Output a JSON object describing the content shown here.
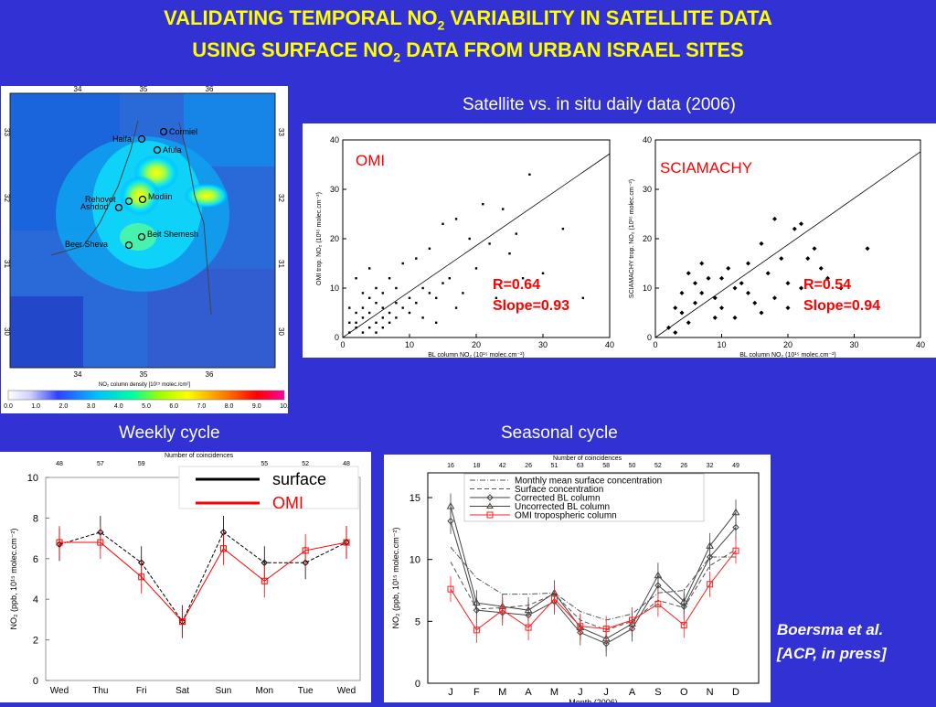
{
  "slide": {
    "title_line1_a": "VALIDATING TEMPORAL NO",
    "title_line1_sub": "2",
    "title_line1_b": " VARIABILITY IN SATELLITE DATA",
    "title_line2_a": "USING SURFACE NO",
    "title_line2_sub": "2",
    "title_line2_b": " DATA FROM URBAN ISRAEL SITES",
    "scatter_heading": "Satellite vs. in situ daily data (2006)",
    "weekly_heading": "Weekly cycle",
    "seasonal_heading": "Seasonal cycle",
    "credit_line1": "Boersma et al.",
    "credit_line2": "[ACP, in press]"
  },
  "map": {
    "top_ticks": [
      "34",
      "35",
      "36"
    ],
    "bottom_ticks": [
      "34",
      "35",
      "36"
    ],
    "left_ticks": [
      "33",
      "32",
      "31",
      "30"
    ],
    "right_ticks": [
      "33",
      "32",
      "31",
      "30"
    ],
    "cities": [
      "Cormiel",
      "Haifa",
      "Afula",
      "Rehovot",
      "Modiin",
      "Ashdod",
      "Beit Shemesh",
      "Beer Sheva"
    ],
    "colorbar_label": "NO₂ column density [10¹⁵ molec./cm²]",
    "colorbar_ticks": [
      "0.0",
      "1.0",
      "2.0",
      "3.0",
      "4.0",
      "5.0",
      "6.0",
      "7.0",
      "8.0",
      "9.0",
      "10."
    ]
  },
  "chart_data": [
    {
      "type": "scatter",
      "label": "OMI",
      "xlabel": "BL column NO₂ (10¹⁵ molec.cm⁻²)",
      "ylabel": "OMI trop. NO₂ (10¹⁵ molec.cm⁻²)",
      "xlim": [
        0,
        40
      ],
      "ylim": [
        0,
        40
      ],
      "ticks": [
        "0",
        "10",
        "20",
        "30",
        "40"
      ],
      "fit_slope": 0.93,
      "stats_r": "R=0.64",
      "stats_slope": "Slope=0.93",
      "points": [
        [
          1,
          1
        ],
        [
          2,
          3
        ],
        [
          2,
          2
        ],
        [
          3,
          1
        ],
        [
          3,
          4
        ],
        [
          4,
          2
        ],
        [
          4,
          5
        ],
        [
          5,
          3
        ],
        [
          5,
          1
        ],
        [
          6,
          2
        ],
        [
          6,
          4
        ],
        [
          7,
          3
        ],
        [
          1,
          3
        ],
        [
          2,
          5
        ],
        [
          3,
          6
        ],
        [
          4,
          8
        ],
        [
          5,
          7
        ],
        [
          6,
          6
        ],
        [
          7,
          5
        ],
        [
          8,
          4
        ],
        [
          8,
          7
        ],
        [
          9,
          6
        ],
        [
          10,
          5
        ],
        [
          10,
          8
        ],
        [
          11,
          7
        ],
        [
          12,
          10
        ],
        [
          13,
          9
        ],
        [
          14,
          8
        ],
        [
          15,
          11
        ],
        [
          16,
          12
        ],
        [
          18,
          9
        ],
        [
          20,
          14
        ],
        [
          3,
          9
        ],
        [
          5,
          10
        ],
        [
          7,
          12
        ],
        [
          9,
          15
        ],
        [
          11,
          16
        ],
        [
          13,
          18
        ],
        [
          15,
          23
        ],
        [
          17,
          24
        ],
        [
          19,
          20
        ],
        [
          22,
          19
        ],
        [
          24,
          26
        ],
        [
          26,
          21
        ],
        [
          28,
          33
        ],
        [
          30,
          13
        ],
        [
          25,
          17
        ],
        [
          21,
          27
        ],
        [
          2,
          12
        ],
        [
          4,
          14
        ],
        [
          1,
          6
        ],
        [
          6,
          9
        ],
        [
          8,
          10
        ],
        [
          12,
          4
        ],
        [
          14,
          3
        ],
        [
          17,
          6
        ],
        [
          23,
          8
        ],
        [
          27,
          12
        ],
        [
          33,
          22
        ],
        [
          36,
          8
        ]
      ]
    },
    {
      "type": "scatter",
      "label": "SCIAMACHY",
      "xlabel": "BL column NO₂ (10¹⁵ molec.cm⁻²)",
      "ylabel": "SCIAMACHY trop. NO₂ (10¹⁵ molec.cm⁻²)",
      "xlim": [
        0,
        40
      ],
      "ylim": [
        0,
        40
      ],
      "ticks": [
        "0",
        "10",
        "20",
        "30",
        "40"
      ],
      "fit_slope": 0.94,
      "stats_r": "R=0.54",
      "stats_slope": "Slope=0.94",
      "points": [
        [
          2,
          2
        ],
        [
          3,
          1
        ],
        [
          4,
          5
        ],
        [
          5,
          3
        ],
        [
          6,
          7
        ],
        [
          7,
          9
        ],
        [
          8,
          12
        ],
        [
          9,
          8
        ],
        [
          10,
          6
        ],
        [
          11,
          14
        ],
        [
          12,
          10
        ],
        [
          13,
          11
        ],
        [
          14,
          9
        ],
        [
          15,
          7
        ],
        [
          16,
          5
        ],
        [
          17,
          13
        ],
        [
          18,
          8
        ],
        [
          19,
          16
        ],
        [
          20,
          11
        ],
        [
          21,
          22
        ],
        [
          22,
          23
        ],
        [
          23,
          16
        ],
        [
          24,
          18
        ],
        [
          25,
          14
        ],
        [
          5,
          13
        ],
        [
          7,
          15
        ],
        [
          9,
          4
        ],
        [
          12,
          4
        ],
        [
          3,
          6
        ],
        [
          4,
          9
        ],
        [
          6,
          11
        ],
        [
          10,
          12
        ],
        [
          14,
          15
        ],
        [
          20,
          6
        ],
        [
          26,
          12
        ],
        [
          28,
          10
        ],
        [
          32,
          18
        ],
        [
          18,
          24
        ],
        [
          16,
          19
        ],
        [
          22,
          10
        ]
      ]
    },
    {
      "type": "line",
      "title": "Number of coincidences",
      "categories": [
        "Wed",
        "Thu",
        "Fri",
        "Sat",
        "Sun",
        "Mon",
        "Tue",
        "Wed"
      ],
      "top_counts": [
        "48",
        "57",
        "59",
        "",
        "",
        "55",
        "52",
        "48"
      ],
      "ylabel": "NO₂ (ppb, 10¹⁵ molec.cm⁻²)",
      "ylim": [
        0,
        10
      ],
      "yticks": [
        "0",
        "2",
        "4",
        "6",
        "8",
        "10"
      ],
      "series": [
        {
          "name": "surface",
          "color": "#000000",
          "values": [
            6.7,
            7.3,
            5.8,
            2.9,
            7.3,
            5.8,
            5.8,
            6.8
          ]
        },
        {
          "name": "OMI",
          "color": "#ff0000",
          "values": [
            6.8,
            6.8,
            5.1,
            2.9,
            6.5,
            4.9,
            6.4,
            6.8
          ]
        }
      ]
    },
    {
      "type": "line",
      "title": "Number of coincidences",
      "categories": [
        "J",
        "F",
        "M",
        "A",
        "M",
        "J",
        "J",
        "A",
        "S",
        "O",
        "N",
        "D"
      ],
      "top_counts": [
        "16",
        "18",
        "42",
        "26",
        "51",
        "63",
        "58",
        "50",
        "52",
        "26",
        "32",
        "49"
      ],
      "xlabel": "Month (2006)",
      "ylabel": "NO₂ (ppb, 10¹⁵ molec.cm⁻²)",
      "ylim": [
        0,
        17
      ],
      "yticks": [
        "0",
        "5",
        "10",
        "15"
      ],
      "series": [
        {
          "name": "Monthly mean surface concentration",
          "color": "#555555",
          "dash": "6,2,1,2",
          "values": [
            11.0,
            8.5,
            7.2,
            7.2,
            7.3,
            5.8,
            5.1,
            5.6,
            7.3,
            7.5,
            10.2,
            10.2
          ]
        },
        {
          "name": "Surface concentration",
          "color": "#555555",
          "dash": "5,3",
          "values": [
            9.8,
            6.0,
            6.1,
            6.3,
            7.2,
            5.1,
            4.3,
            5.0,
            6.7,
            6.1,
            9.5,
            10.8
          ]
        },
        {
          "name": "Corrected BL column",
          "color": "#444444",
          "marker": "diamond",
          "values": [
            13.1,
            5.9,
            5.7,
            5.5,
            6.6,
            4.1,
            3.2,
            4.4,
            7.9,
            6.2,
            10.2,
            12.6
          ]
        },
        {
          "name": "Uncorrected BL column",
          "color": "#444444",
          "marker": "triangle",
          "values": [
            14.3,
            6.5,
            6.2,
            5.9,
            7.3,
            4.5,
            3.6,
            4.8,
            8.7,
            6.6,
            11.1,
            13.8
          ]
        },
        {
          "name": "OMI tropospheric column",
          "color": "#ff2020",
          "marker": "square",
          "values": [
            7.6,
            4.3,
            5.9,
            4.5,
            6.8,
            4.6,
            4.4,
            5.1,
            6.4,
            4.7,
            8.0,
            10.7
          ]
        }
      ]
    }
  ]
}
